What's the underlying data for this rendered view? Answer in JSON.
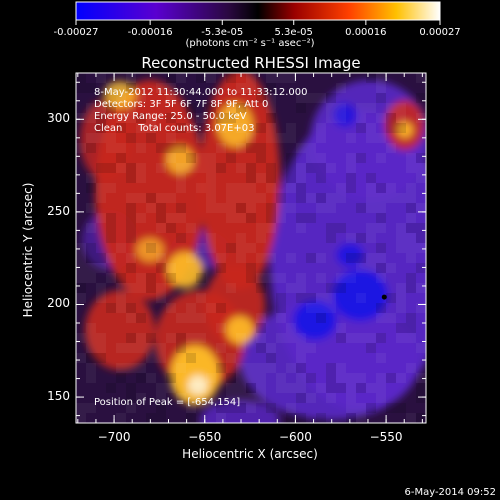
{
  "colorbar": {
    "ticks": [
      "-0.00027",
      "-0.00016",
      "-5.3e-05",
      "5.3e-05",
      "0.00016",
      "0.00027"
    ],
    "units": "(photons cm⁻² s⁻¹ asec⁻²)"
  },
  "plot": {
    "title": "Reconstructed RHESSI Image",
    "info_lines": [
      "8-May-2012 11:30:44.000 to 11:33:12.000",
      "Detectors: 3F 5F 6F 7F 8F 9F, Att 0",
      "Energy Range: 25.0 - 50.0 keV",
      "Clean     Total counts: 3.07E+03"
    ],
    "peak_label": "Position of Peak = [-654,154]",
    "footer_date": "6-May-2014 09:52"
  },
  "chart_data": {
    "type": "heatmap",
    "title": "Reconstructed RHESSI Image",
    "xlabel": "Heliocentric X (arcsec)",
    "ylabel": "Heliocentric Y (arcsec)",
    "xlim": [
      -721,
      -528
    ],
    "ylim": [
      136,
      325
    ],
    "x_ticks": [
      -700,
      -650,
      -600,
      -550
    ],
    "y_ticks": [
      150,
      200,
      250,
      300
    ],
    "colorbar_range": [
      -0.00027,
      0.00027
    ],
    "colorbar_ticks": [
      -0.00027,
      -0.00016,
      -5.3e-05,
      5.3e-05,
      0.00016,
      0.00027
    ],
    "peak": [
      -654,
      154
    ],
    "colors": {
      "negative_low": "#1414e6",
      "negative_mid": "#5a28c8",
      "zero": "#2a1040",
      "positive_mid": "#c8281e",
      "positive_high": "#ffc028",
      "max": "#ffffff"
    }
  }
}
